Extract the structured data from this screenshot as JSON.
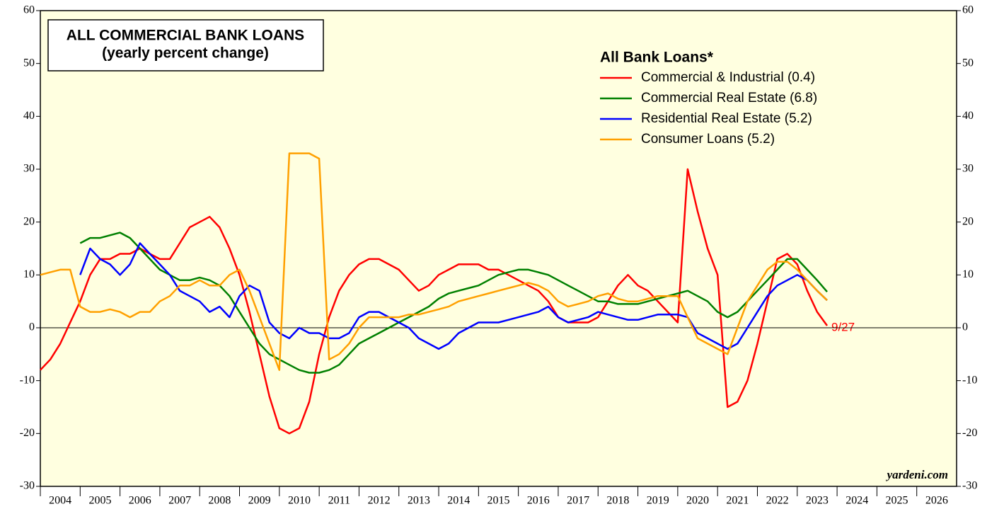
{
  "chart_data": {
    "type": "line",
    "title": "ALL COMMERCIAL BANK LOANS",
    "subtitle": "(yearly percent change)",
    "legend_title": "All Bank Loans*",
    "annotations": [
      "9/27",
      "yardeni.com"
    ],
    "xlim": [
      2004,
      2027
    ],
    "xticks": [
      2004,
      2005,
      2006,
      2007,
      2008,
      2009,
      2010,
      2011,
      2012,
      2013,
      2014,
      2015,
      2016,
      2017,
      2018,
      2019,
      2020,
      2021,
      2022,
      2023,
      2024,
      2025,
      2026
    ],
    "ylim": [
      -30,
      60
    ],
    "yticks": [
      -30,
      -20,
      -10,
      0,
      10,
      20,
      30,
      40,
      50,
      60
    ],
    "x": [
      2004,
      2004.25,
      2004.5,
      2004.75,
      2005,
      2005.25,
      2005.5,
      2005.75,
      2006,
      2006.25,
      2006.5,
      2006.75,
      2007,
      2007.25,
      2007.5,
      2007.75,
      2008,
      2008.25,
      2008.5,
      2008.75,
      2009,
      2009.25,
      2009.5,
      2009.75,
      2010,
      2010.25,
      2010.5,
      2010.75,
      2011,
      2011.25,
      2011.5,
      2011.75,
      2012,
      2012.25,
      2012.5,
      2012.75,
      2013,
      2013.25,
      2013.5,
      2013.75,
      2014,
      2014.25,
      2014.5,
      2014.75,
      2015,
      2015.25,
      2015.5,
      2015.75,
      2016,
      2016.25,
      2016.5,
      2016.75,
      2017,
      2017.25,
      2017.5,
      2017.75,
      2018,
      2018.25,
      2018.5,
      2018.75,
      2019,
      2019.25,
      2019.5,
      2019.75,
      2020,
      2020.25,
      2020.5,
      2020.75,
      2021,
      2021.25,
      2021.5,
      2021.75,
      2022,
      2022.25,
      2022.5,
      2022.75,
      2023,
      2023.25,
      2023.5,
      2023.75
    ],
    "series": [
      {
        "name": "Commercial & Industrial (0.4)",
        "color": "#ff0000",
        "values": [
          -8,
          -6,
          -3,
          1,
          5,
          10,
          13,
          13,
          14,
          14,
          15,
          14,
          13,
          13,
          16,
          19,
          20,
          21,
          19,
          15,
          10,
          3,
          -5,
          -13,
          -19,
          -20,
          -19,
          -14,
          -5,
          2,
          7,
          10,
          12,
          13,
          13,
          12,
          11,
          9,
          7,
          8,
          10,
          11,
          12,
          12,
          12,
          11,
          11,
          10,
          9,
          8,
          7,
          5,
          2,
          1,
          1,
          1,
          2,
          5,
          8,
          10,
          8,
          7,
          5,
          3,
          1,
          30,
          22,
          15,
          10,
          -15,
          -14,
          -10,
          -3,
          5,
          13,
          14,
          12,
          7,
          3,
          0.4
        ]
      },
      {
        "name": "Commercial Real Estate (6.8)",
        "color": "#008000",
        "values": [
          null,
          null,
          null,
          null,
          16,
          17,
          17,
          17.5,
          18,
          17,
          15,
          13,
          11,
          10,
          9,
          9,
          9.5,
          9,
          8,
          6,
          3,
          0,
          -3,
          -5,
          -6,
          -7,
          -8,
          -8.5,
          -8.5,
          -8,
          -7,
          -5,
          -3,
          -2,
          -1,
          0,
          1,
          2,
          3,
          4,
          5.5,
          6.5,
          7,
          7.5,
          8,
          9,
          10,
          10.5,
          11,
          11,
          10.5,
          10,
          9,
          8,
          7,
          6,
          5,
          5,
          4.5,
          4.5,
          4.5,
          5,
          5.5,
          6,
          6.5,
          7,
          6,
          5,
          3,
          2,
          3,
          5,
          7,
          9,
          11,
          13,
          13,
          11,
          9,
          6.8
        ]
      },
      {
        "name": "Residential Real Estate (5.2)",
        "color": "#0000ff",
        "values": [
          null,
          null,
          null,
          null,
          10,
          15,
          13,
          12,
          10,
          12,
          16,
          14,
          12,
          10,
          7,
          6,
          5,
          3,
          4,
          2,
          6,
          8,
          7,
          1,
          -1,
          -2,
          0,
          -1,
          -1,
          -2,
          -2,
          -1,
          2,
          3,
          3,
          2,
          1,
          0,
          -2,
          -3,
          -4,
          -3,
          -1,
          0,
          1,
          1,
          1,
          1.5,
          2,
          2.5,
          3,
          4,
          2,
          1,
          1.5,
          2,
          3,
          2.5,
          2,
          1.5,
          1.5,
          2,
          2.5,
          2.5,
          2.5,
          2,
          -1,
          -2,
          -3,
          -4,
          -3,
          0,
          3,
          6,
          8,
          9,
          10,
          9,
          7,
          5.2
        ]
      },
      {
        "name": "Consumer Loans (5.2)",
        "color": "#ffa000",
        "values": [
          10,
          10.5,
          11,
          11,
          4,
          3,
          3,
          3.5,
          3,
          2,
          3,
          3,
          5,
          6,
          8,
          8,
          9,
          8,
          8,
          10,
          11,
          7,
          2,
          -3,
          -8,
          33,
          33,
          33,
          32,
          -6,
          -5,
          -3,
          0,
          2,
          2,
          2,
          2,
          2.5,
          2.5,
          3,
          3.5,
          4,
          5,
          5.5,
          6,
          6.5,
          7,
          7.5,
          8,
          8.5,
          8,
          7,
          5,
          4,
          4.5,
          5,
          6,
          6.5,
          5.5,
          5,
          5,
          5.5,
          6,
          6,
          6,
          2,
          -2,
          -3,
          -4,
          -5,
          0,
          5,
          8,
          11,
          12.5,
          12.5,
          11,
          9,
          7,
          5.2
        ]
      }
    ]
  }
}
